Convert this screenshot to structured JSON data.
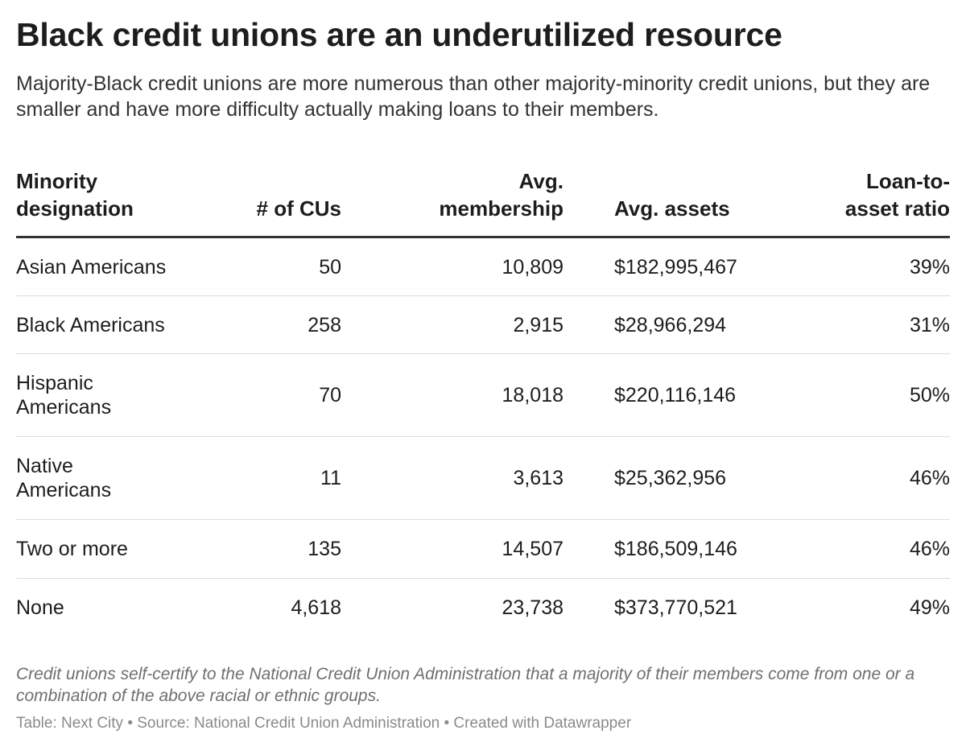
{
  "chart_data": {
    "type": "table",
    "title": "Black credit unions are an underutilized resource",
    "subtitle": "Majority-Black credit unions are more numerous than other majority-minority credit unions, but they are smaller and have more difficulty actually making loans to their members.",
    "columns": [
      {
        "line1": "Minority",
        "line2": "designation"
      },
      {
        "line1": "",
        "line2": "# of CUs"
      },
      {
        "line1": "Avg.",
        "line2": "membership"
      },
      {
        "line1": "",
        "line2": "Avg. assets"
      },
      {
        "line1": "Loan-to-",
        "line2": "asset ratio"
      }
    ],
    "rows": [
      {
        "designation_1": "Asian Americans",
        "designation_2": "",
        "cus": "50",
        "membership": "10,809",
        "assets": "$182,995,467",
        "ratio": "39%"
      },
      {
        "designation_1": "Black Americans",
        "designation_2": "",
        "cus": "258",
        "membership": "2,915",
        "assets": "$28,966,294",
        "ratio": "31%"
      },
      {
        "designation_1": "Hispanic",
        "designation_2": "Americans",
        "cus": "70",
        "membership": "18,018",
        "assets": "$220,116,146",
        "ratio": "50%"
      },
      {
        "designation_1": "Native",
        "designation_2": "Americans",
        "cus": "11",
        "membership": "3,613",
        "assets": "$25,362,956",
        "ratio": "46%"
      },
      {
        "designation_1": "Two or more",
        "designation_2": "",
        "cus": "135",
        "membership": "14,507",
        "assets": "$186,509,146",
        "ratio": "46%"
      },
      {
        "designation_1": "None",
        "designation_2": "",
        "cus": "4,618",
        "membership": "23,738",
        "assets": "$373,770,521",
        "ratio": "49%"
      }
    ],
    "notes": "Credit unions self-certify to the National Credit Union Administration that a majority of their members come from one or a combination of the above racial or ethnic groups.",
    "credit": "Table: Next City • Source: National Credit Union Administration • Created with Datawrapper"
  }
}
